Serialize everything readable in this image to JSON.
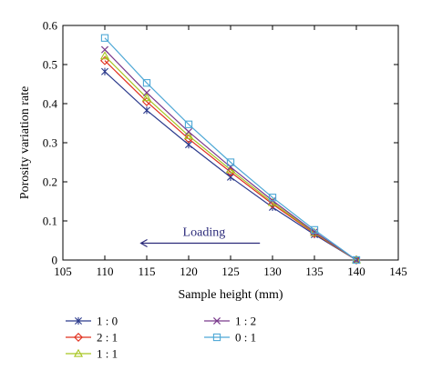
{
  "chart_data": {
    "type": "line",
    "title": "",
    "xlabel": "Sample height (mm)",
    "ylabel": "Porosity variation rate",
    "xlim": [
      105,
      145
    ],
    "ylim": [
      0,
      0.6
    ],
    "xticks": [
      "105",
      "110",
      "115",
      "120",
      "125",
      "130",
      "135",
      "140",
      "145"
    ],
    "yticks": [
      "0",
      "0.1",
      "0.2",
      "0.3",
      "0.4",
      "0.5",
      "0.6"
    ],
    "grid": false,
    "legend_position": "bottom",
    "x": [
      110,
      115,
      120,
      125,
      130,
      135,
      140
    ],
    "series": [
      {
        "name": "1 : 0",
        "color": "#2b3a8c",
        "marker": "asterisk",
        "values": [
          0.482,
          0.383,
          0.295,
          0.212,
          0.135,
          0.065,
          0.0
        ]
      },
      {
        "name": "2 : 1",
        "color": "#e0301e",
        "marker": "diamond",
        "values": [
          0.51,
          0.405,
          0.31,
          0.225,
          0.143,
          0.068,
          0.0
        ]
      },
      {
        "name": "1 : 1",
        "color": "#a7c520",
        "marker": "triangle",
        "values": [
          0.522,
          0.415,
          0.318,
          0.231,
          0.147,
          0.07,
          0.0
        ]
      },
      {
        "name": "1 : 2",
        "color": "#7a3a8c",
        "marker": "x",
        "values": [
          0.538,
          0.428,
          0.328,
          0.238,
          0.152,
          0.072,
          0.0
        ]
      },
      {
        "name": "0 : 1",
        "color": "#4ea8d6",
        "marker": "square",
        "values": [
          0.568,
          0.453,
          0.347,
          0.25,
          0.16,
          0.077,
          0.0
        ]
      }
    ],
    "annotation": {
      "text": "Loading",
      "arrow_from": 128.5,
      "arrow_to": 114.3,
      "arrow_y": 0.043,
      "arrow_color": "#2b2a7a"
    }
  }
}
